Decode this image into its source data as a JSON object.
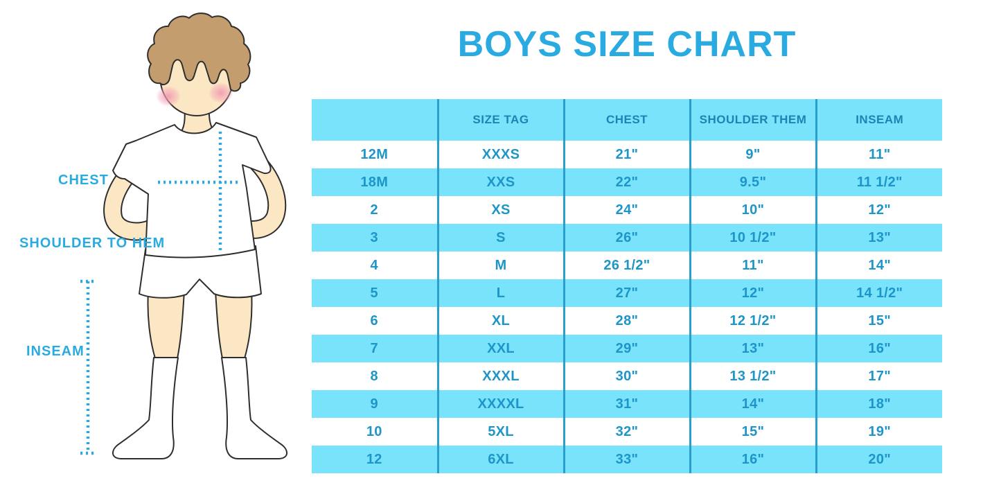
{
  "title": "BOYS SIZE CHART",
  "figure": {
    "labels": {
      "chest": "CHEST",
      "shoulder_to_hem": "SHOULDER TO HEM",
      "inseam": "INSEAM"
    }
  },
  "chart_data": {
    "type": "table",
    "title": "BOYS SIZE CHART",
    "columns": [
      "",
      "SIZE TAG",
      "CHEST",
      "SHOULDER THEM",
      "INSEAM"
    ],
    "rows": [
      [
        "12M",
        "XXXS",
        "21\"",
        "9\"",
        "11\""
      ],
      [
        "18M",
        "XXS",
        "22\"",
        "9.5\"",
        "11 1/2\""
      ],
      [
        "2",
        "XS",
        "24\"",
        "10\"",
        "12\""
      ],
      [
        "3",
        "S",
        "26\"",
        "10 1/2\"",
        "13\""
      ],
      [
        "4",
        "M",
        "26 1/2\"",
        "11\"",
        "14\""
      ],
      [
        "5",
        "L",
        "27\"",
        "12\"",
        "14 1/2\""
      ],
      [
        "6",
        "XL",
        "28\"",
        "12 1/2\"",
        "15\""
      ],
      [
        "7",
        "XXL",
        "29\"",
        "13\"",
        "16\""
      ],
      [
        "8",
        "XXXL",
        "30\"",
        "13 1/2\"",
        "17\""
      ],
      [
        "9",
        "XXXXL",
        "31\"",
        "14\"",
        "18\""
      ],
      [
        "10",
        "5XL",
        "32\"",
        "15\"",
        "19\""
      ],
      [
        "12",
        "6XL",
        "33\"",
        "16\"",
        "20\""
      ]
    ]
  },
  "colors": {
    "accent_blue": "#29ABE2",
    "row_blue": "#79E3FB",
    "separator_blue": "#2B9FCB",
    "header_text": "#1C84B5",
    "cell_text": "#1E95C9",
    "hair": "#C49D6F",
    "skin": "#FBE7C3",
    "blush": "#F2A3B6",
    "outline": "#2E2E2E"
  }
}
